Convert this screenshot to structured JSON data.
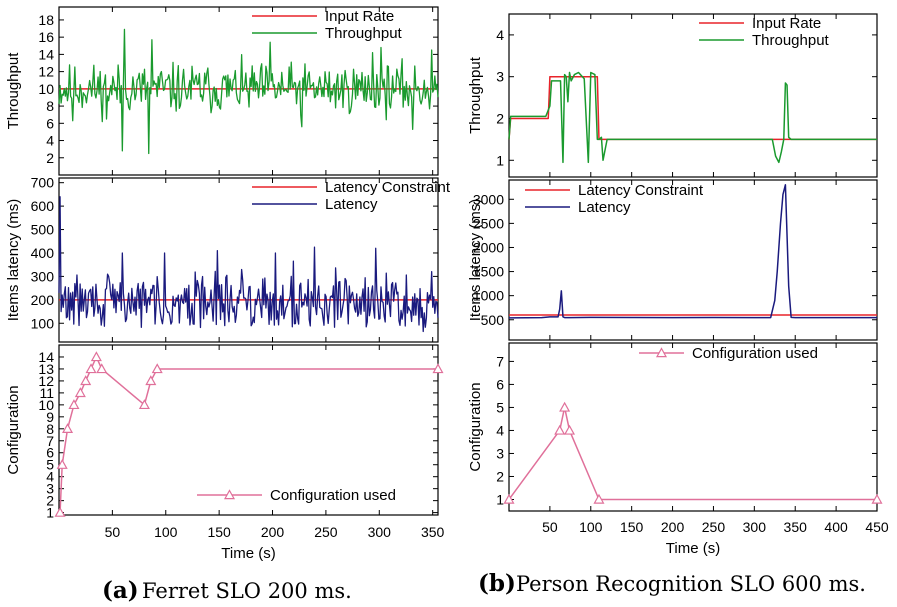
{
  "figure": {
    "caption_a_tag": "(a)",
    "caption_a_text": "Ferret SLO 200 ms.",
    "caption_b_tag": "(b)",
    "caption_b_text": "Person Recognition SLO 600 ms."
  },
  "colors": {
    "input_rate": "#e8232a",
    "throughput": "#1a9a2e",
    "latency_constraint": "#e8232a",
    "latency": "#1a1a7e",
    "configuration": "#e0709a"
  },
  "chart_data": [
    {
      "id": "ferret",
      "type": "line",
      "xlabel": "Time (s)",
      "xlim": [
        0,
        355
      ],
      "xticks": [
        50,
        100,
        150,
        200,
        250,
        300,
        350
      ],
      "panels": [
        {
          "ylabel": "Throughput",
          "ylim": [
            0,
            19.5
          ],
          "yticks": [
            2,
            4,
            6,
            8,
            10,
            12,
            14,
            16,
            18
          ],
          "legend": "top-right",
          "series": [
            {
              "name": "Input Rate",
              "style": "flat",
              "y": 10
            },
            {
              "name": "Throughput",
              "style": "noise",
              "base": 10,
              "amp": 2.6,
              "seed": 11,
              "n": 360,
              "spikes": [
                [
                  13,
                  6.3
                ],
                [
                  45,
                  6.5
                ],
                [
                  60,
                  2.8
                ],
                [
                  62,
                  16.9
                ],
                [
                  85,
                  2.5
                ],
                [
                  88,
                  15.7
                ],
                [
                  200,
                  15.4
                ],
                [
                  230,
                  5.6
                ],
                [
                  297,
                  14.2
                ],
                [
                  305,
                  14.8
                ],
                [
                  335,
                  5.3
                ],
                [
                  353,
                  14.5
                ]
              ]
            }
          ]
        },
        {
          "ylabel": "Items latency (ms)",
          "ylim": [
            20,
            720
          ],
          "yticks": [
            100,
            200,
            300,
            400,
            500,
            600,
            700
          ],
          "legend": "top-right",
          "series": [
            {
              "name": "Latency Constraint",
              "style": "flat",
              "y": 200
            },
            {
              "name": "Latency",
              "style": "noise",
              "base": 190,
              "amp": 110,
              "min": 80,
              "seed": 29,
              "n": 360,
              "spikes": [
                [
                  1,
                  640
                ],
                [
                  2,
                  150
                ],
                [
                  60,
                  400
                ],
                [
                  100,
                  400
                ],
                [
                  150,
                  410
                ],
                [
                  205,
                  400
                ],
                [
                  222,
                  365
                ],
                [
                  242,
                  425
                ],
                [
                  300,
                  420
                ],
                [
                  345,
                  65
                ],
                [
                  353,
                  320
                ]
              ]
            }
          ]
        },
        {
          "ylabel": "Configuration",
          "ylim": [
            0.8,
            15
          ],
          "yticks": [
            1,
            2,
            3,
            4,
            5,
            6,
            7,
            8,
            9,
            10,
            11,
            12,
            13,
            14
          ],
          "legend": "bottom-center",
          "series": [
            {
              "name": "Configuration used",
              "style": "markers",
              "x": [
                1,
                3,
                8,
                14,
                20,
                25,
                30,
                35,
                40,
                80,
                86,
                92,
                355
              ],
              "y": [
                1,
                5,
                8,
                10,
                11,
                12,
                13,
                14,
                13,
                10,
                12,
                13,
                13
              ]
            }
          ]
        }
      ]
    },
    {
      "id": "person",
      "type": "line",
      "xlabel": "Time (s)",
      "xlim": [
        0,
        450
      ],
      "xticks": [
        50,
        100,
        150,
        200,
        250,
        300,
        350,
        400,
        450
      ],
      "panels": [
        {
          "ylabel": "Throughput",
          "ylim": [
            0.6,
            4.5
          ],
          "yticks": [
            1,
            2,
            3,
            4
          ],
          "legend": "top-right",
          "series": [
            {
              "name": "Input Rate",
              "style": "path",
              "x": [
                0,
                2,
                48,
                50,
                108,
                110,
                450
              ],
              "y": [
                1.5,
                2.0,
                2.0,
                3.0,
                3.0,
                1.5,
                1.5
              ]
            },
            {
              "name": "Throughput",
              "style": "path",
              "x": [
                0,
                2,
                45,
                50,
                52,
                60,
                63,
                66,
                68,
                70,
                72,
                74,
                76,
                80,
                85,
                92,
                97,
                100,
                105,
                108,
                110,
                113,
                115,
                120,
                322,
                326,
                330,
                333,
                336,
                338,
                340,
                342,
                345,
                450
              ],
              "y": [
                1.5,
                2.05,
                2.05,
                2.3,
                2.9,
                2.9,
                2.9,
                0.95,
                3.05,
                3.0,
                2.4,
                3.1,
                2.9,
                3.05,
                3.1,
                2.95,
                0.95,
                3.1,
                3.05,
                1.5,
                1.5,
                1.55,
                1.0,
                1.5,
                1.5,
                1.1,
                0.95,
                1.2,
                1.5,
                2.85,
                2.8,
                1.55,
                1.5,
                1.5
              ]
            }
          ]
        },
        {
          "ylabel": "Items latency (ms)",
          "ylim": [
            80,
            3400
          ],
          "yticks": [
            500,
            1000,
            1500,
            2000,
            2500,
            3000
          ],
          "legend": "top-left",
          "series": [
            {
              "name": "Latency Constraint",
              "style": "flat",
              "y": 600
            },
            {
              "name": "Latency",
              "style": "path",
              "x": [
                0,
                2,
                40,
                50,
                60,
                62,
                64,
                66,
                68,
                75,
                100,
                150,
                200,
                250,
                300,
                320,
                325,
                328,
                332,
                335,
                338,
                342,
                345,
                350,
                400,
                450
              ],
              "y": [
                540,
                540,
                545,
                560,
                560,
                720,
                1100,
                560,
                545,
                545,
                550,
                548,
                545,
                548,
                545,
                545,
                900,
                1500,
                2500,
                3100,
                3300,
                1200,
                550,
                545,
                545,
                545
              ]
            }
          ]
        },
        {
          "ylabel": "Configuration",
          "ylim": [
            0.5,
            7.8
          ],
          "yticks": [
            1,
            2,
            3,
            4,
            5,
            6,
            7
          ],
          "legend": "top-center",
          "series": [
            {
              "name": "Configuration used",
              "style": "markers",
              "x": [
                0,
                62,
                68,
                74,
                110,
                450
              ],
              "y": [
                1,
                4,
                5,
                4,
                1,
                1
              ]
            }
          ]
        }
      ]
    }
  ]
}
